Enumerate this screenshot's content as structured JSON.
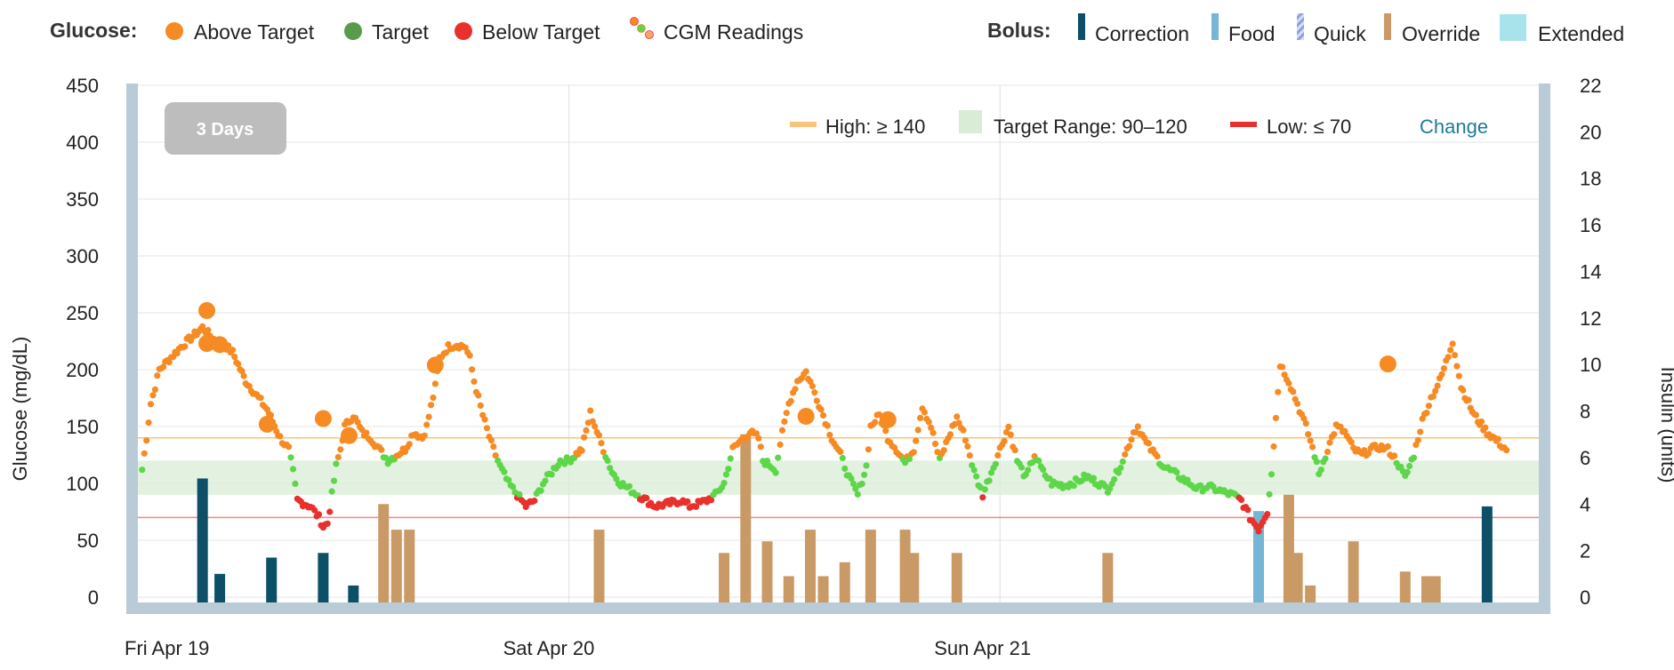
{
  "legend": {
    "glucose_heading": "Glucose:",
    "glucose_items": [
      {
        "label": "Above Target",
        "color": "#f68b24",
        "icon": "dot"
      },
      {
        "label": "Target",
        "color": "#5a9a4d",
        "icon": "dot"
      },
      {
        "label": "Below Target",
        "color": "#e8302c",
        "icon": "dot"
      },
      {
        "label": "CGM Readings",
        "color": "#f68b24",
        "icon": "cgm-dots"
      }
    ],
    "bolus_heading": "Bolus:",
    "bolus_items": [
      {
        "label": "Correction",
        "color": "#0d4f66",
        "icon": "bar"
      },
      {
        "label": "Food",
        "color": "#74b6d3",
        "icon": "bar"
      },
      {
        "label": "Quick",
        "color": "#8e9ee0",
        "icon": "striped-bar"
      },
      {
        "label": "Override",
        "color": "#c99a66",
        "icon": "bar"
      },
      {
        "label": "Extended",
        "color": "#a8e2ea",
        "icon": "square"
      }
    ]
  },
  "range_button": {
    "label": "3 Days"
  },
  "thresholds": {
    "high_label": "High: ≥ 140",
    "target_label": "Target Range: 90–120",
    "low_label": "Low: ≤ 70",
    "change_label": "Change",
    "high_color": "#f9c37a",
    "target_color": "#d9ecd6",
    "low_color": "#e8302c"
  },
  "chart_data": {
    "type": "scatter",
    "xlabels": [
      "Fri Apr 19",
      "Sat Apr 20",
      "Sun Apr 21"
    ],
    "x_range_days": [
      0,
      3
    ],
    "yleft": {
      "label": "Glucose (mg/dL)",
      "range": [
        0,
        450
      ],
      "ticks": [
        0,
        50,
        100,
        150,
        200,
        250,
        300,
        350,
        400,
        450
      ]
    },
    "yright": {
      "label": "Insulin (units)",
      "range": [
        0,
        22
      ],
      "ticks": [
        0,
        2,
        4,
        6,
        8,
        10,
        12,
        14,
        16,
        18,
        20,
        22
      ]
    },
    "high": 140,
    "low": 70,
    "target_low": 90,
    "target_high": 120,
    "colors": {
      "above": "#f68b24",
      "target": "#5ed64a",
      "below": "#e8302c",
      "correction": "#0d4f66",
      "food": "#74b6d3",
      "override": "#c99a66"
    },
    "cgm_keypoints": [
      [
        0.01,
        112
      ],
      [
        0.02,
        140
      ],
      [
        0.03,
        170
      ],
      [
        0.05,
        200
      ],
      [
        0.1,
        220
      ],
      [
        0.15,
        237
      ],
      [
        0.18,
        225
      ],
      [
        0.2,
        222
      ],
      [
        0.22,
        215
      ],
      [
        0.25,
        190
      ],
      [
        0.28,
        175
      ],
      [
        0.3,
        165
      ],
      [
        0.33,
        140
      ],
      [
        0.35,
        130
      ],
      [
        0.36,
        110
      ],
      [
        0.37,
        85
      ],
      [
        0.4,
        80
      ],
      [
        0.42,
        70
      ],
      [
        0.43,
        62
      ],
      [
        0.44,
        65
      ],
      [
        0.45,
        90
      ],
      [
        0.46,
        115
      ],
      [
        0.47,
        130
      ],
      [
        0.48,
        150
      ],
      [
        0.5,
        160
      ],
      [
        0.52,
        145
      ],
      [
        0.54,
        140
      ],
      [
        0.56,
        130
      ],
      [
        0.58,
        120
      ],
      [
        0.6,
        125
      ],
      [
        0.62,
        130
      ],
      [
        0.64,
        145
      ],
      [
        0.66,
        140
      ],
      [
        0.67,
        150
      ],
      [
        0.69,
        185
      ],
      [
        0.7,
        210
      ],
      [
        0.72,
        220
      ],
      [
        0.74,
        222
      ],
      [
        0.76,
        220
      ],
      [
        0.77,
        210
      ],
      [
        0.78,
        190
      ],
      [
        0.8,
        160
      ],
      [
        0.82,
        135
      ],
      [
        0.84,
        115
      ],
      [
        0.86,
        100
      ],
      [
        0.88,
        90
      ],
      [
        0.9,
        80
      ],
      [
        0.92,
        85
      ],
      [
        0.94,
        100
      ],
      [
        0.96,
        110
      ],
      [
        0.98,
        120
      ],
      [
        1.0,
        120
      ],
      [
        1.03,
        130
      ],
      [
        1.05,
        162
      ],
      [
        1.07,
        140
      ],
      [
        1.09,
        120
      ],
      [
        1.1,
        110
      ],
      [
        1.12,
        100
      ],
      [
        1.14,
        95
      ],
      [
        1.16,
        90
      ],
      [
        1.18,
        85
      ],
      [
        1.2,
        80
      ],
      [
        1.23,
        82
      ],
      [
        1.26,
        85
      ],
      [
        1.28,
        80
      ],
      [
        1.3,
        82
      ],
      [
        1.32,
        85
      ],
      [
        1.34,
        90
      ],
      [
        1.36,
        100
      ],
      [
        1.38,
        130
      ],
      [
        1.4,
        138
      ],
      [
        1.42,
        145
      ],
      [
        1.44,
        140
      ],
      [
        1.45,
        120
      ],
      [
        1.47,
        115
      ],
      [
        1.48,
        112
      ],
      [
        1.49,
        135
      ],
      [
        1.51,
        170
      ],
      [
        1.53,
        190
      ],
      [
        1.55,
        198
      ],
      [
        1.57,
        180
      ],
      [
        1.59,
        160
      ],
      [
        1.61,
        140
      ],
      [
        1.63,
        125
      ],
      [
        1.65,
        105
      ],
      [
        1.67,
        90
      ],
      [
        1.69,
        115
      ],
      [
        1.7,
        150
      ],
      [
        1.72,
        160
      ],
      [
        1.74,
        140
      ],
      [
        1.76,
        130
      ],
      [
        1.78,
        118
      ],
      [
        1.8,
        130
      ],
      [
        1.82,
        168
      ],
      [
        1.84,
        150
      ],
      [
        1.86,
        120
      ],
      [
        1.88,
        140
      ],
      [
        1.9,
        158
      ],
      [
        1.92,
        140
      ],
      [
        1.94,
        110
      ],
      [
        1.96,
        90
      ],
      [
        1.98,
        110
      ],
      [
        2.0,
        130
      ],
      [
        2.02,
        150
      ],
      [
        2.04,
        120
      ],
      [
        2.06,
        105
      ],
      [
        2.08,
        125
      ],
      [
        2.1,
        110
      ],
      [
        2.12,
        100
      ],
      [
        2.15,
        98
      ],
      [
        2.18,
        102
      ],
      [
        2.2,
        106
      ],
      [
        2.23,
        100
      ],
      [
        2.25,
        95
      ],
      [
        2.27,
        108
      ],
      [
        2.29,
        125
      ],
      [
        2.31,
        145
      ],
      [
        2.32,
        150
      ],
      [
        2.34,
        135
      ],
      [
        2.36,
        125
      ],
      [
        2.38,
        115
      ],
      [
        2.4,
        110
      ],
      [
        2.42,
        105
      ],
      [
        2.44,
        100
      ],
      [
        2.46,
        95
      ],
      [
        2.48,
        97
      ],
      [
        2.5,
        95
      ],
      [
        2.52,
        92
      ],
      [
        2.54,
        90
      ],
      [
        2.56,
        85
      ],
      [
        2.58,
        70
      ],
      [
        2.6,
        60
      ],
      [
        2.62,
        75
      ],
      [
        2.63,
        110
      ],
      [
        2.65,
        205
      ],
      [
        2.67,
        190
      ],
      [
        2.69,
        170
      ],
      [
        2.71,
        150
      ],
      [
        2.73,
        125
      ],
      [
        2.74,
        108
      ],
      [
        2.76,
        130
      ],
      [
        2.78,
        150
      ],
      [
        2.8,
        145
      ],
      [
        2.82,
        130
      ],
      [
        2.84,
        125
      ],
      [
        2.86,
        130
      ],
      [
        2.88,
        132
      ],
      [
        2.9,
        130
      ],
      [
        2.92,
        120
      ],
      [
        2.94,
        105
      ],
      [
        2.96,
        125
      ],
      [
        2.98,
        155
      ],
      [
        3.0,
        175
      ],
      [
        3.02,
        190
      ],
      [
        3.04,
        212
      ],
      [
        3.05,
        225
      ],
      [
        3.07,
        185
      ],
      [
        3.1,
        160
      ],
      [
        3.13,
        145
      ],
      [
        3.16,
        135
      ],
      [
        3.18,
        128
      ]
    ],
    "bg_meter": [
      [
        0.16,
        252
      ],
      [
        0.16,
        223
      ],
      [
        0.19,
        222
      ],
      [
        0.3,
        152
      ],
      [
        0.43,
        157
      ],
      [
        0.49,
        142
      ],
      [
        0.69,
        204
      ],
      [
        1.55,
        159
      ],
      [
        1.74,
        156
      ],
      [
        2.9,
        205
      ]
    ],
    "boluses": [
      {
        "x": 0.15,
        "units": 5.1,
        "type": "correction"
      },
      {
        "x": 0.19,
        "units": 1.0,
        "type": "correction"
      },
      {
        "x": 0.31,
        "units": 1.7,
        "type": "correction"
      },
      {
        "x": 0.43,
        "units": 1.9,
        "type": "correction"
      },
      {
        "x": 0.5,
        "units": 0.5,
        "type": "correction"
      },
      {
        "x": 0.57,
        "units": 4.0,
        "type": "override"
      },
      {
        "x": 0.6,
        "units": 2.9,
        "type": "override"
      },
      {
        "x": 0.63,
        "units": 2.9,
        "type": "override"
      },
      {
        "x": 1.07,
        "units": 2.9,
        "type": "override"
      },
      {
        "x": 1.36,
        "units": 1.9,
        "type": "override"
      },
      {
        "x": 1.41,
        "units": 7.0,
        "type": "override"
      },
      {
        "x": 1.46,
        "units": 2.4,
        "type": "override"
      },
      {
        "x": 1.51,
        "units": 0.9,
        "type": "override"
      },
      {
        "x": 1.56,
        "units": 2.9,
        "type": "override"
      },
      {
        "x": 1.59,
        "units": 0.9,
        "type": "override"
      },
      {
        "x": 1.64,
        "units": 1.5,
        "type": "override"
      },
      {
        "x": 1.7,
        "units": 2.9,
        "type": "override"
      },
      {
        "x": 1.78,
        "units": 2.9,
        "type": "override"
      },
      {
        "x": 1.8,
        "units": 1.9,
        "type": "override"
      },
      {
        "x": 1.9,
        "units": 1.9,
        "type": "override"
      },
      {
        "x": 2.25,
        "units": 1.9,
        "type": "override"
      },
      {
        "x": 2.6,
        "units": 3.7,
        "type": "food"
      },
      {
        "x": 2.67,
        "units": 4.4,
        "type": "override"
      },
      {
        "x": 2.69,
        "units": 1.9,
        "type": "override"
      },
      {
        "x": 2.72,
        "units": 0.5,
        "type": "override"
      },
      {
        "x": 2.82,
        "units": 2.4,
        "type": "override"
      },
      {
        "x": 2.94,
        "units": 1.1,
        "type": "override"
      },
      {
        "x": 2.99,
        "units": 0.9,
        "type": "override"
      },
      {
        "x": 3.01,
        "units": 0.9,
        "type": "override"
      },
      {
        "x": 3.13,
        "units": 3.9,
        "type": "correction"
      }
    ]
  }
}
